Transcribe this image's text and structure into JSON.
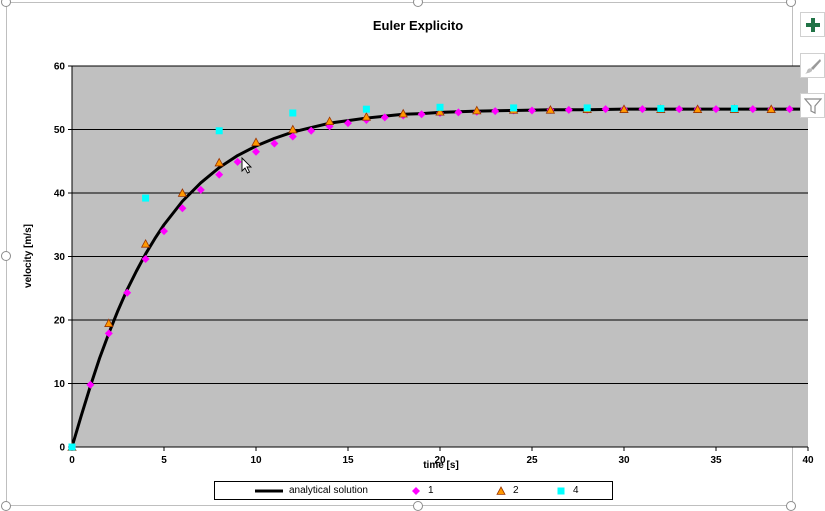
{
  "colors": {
    "plot_bg": "#c0c0c0",
    "grid": "#000000",
    "series_1": "#ff00ff",
    "series_2": "#ff9900",
    "series_2_edge": "#993300",
    "series_4": "#00ffff",
    "analytical": "#000000",
    "accent_plus": "#217346"
  },
  "toolbar": {
    "chart_elements_icon": "plus-icon",
    "chart_styles_icon": "brush-icon",
    "chart_filters_icon": "funnel-icon"
  },
  "chart_data": {
    "type": "scatter",
    "title": "Euler Explicito",
    "xlabel": "time [s]",
    "ylabel": "velocity [m/s]",
    "xlim": [
      0,
      40
    ],
    "ylim": [
      0,
      60
    ],
    "xticks": [
      "0",
      "5",
      "10",
      "15",
      "20",
      "25",
      "30",
      "35",
      "40"
    ],
    "yticks": [
      "0",
      "10",
      "20",
      "30",
      "40",
      "50",
      "60"
    ],
    "grid": "horizontal",
    "legend_position": "bottom",
    "series": [
      {
        "name": "analytical solution",
        "kind": "line",
        "color": "#000000",
        "x": [
          0,
          0.5,
          1,
          1.5,
          2,
          2.5,
          3,
          3.5,
          4,
          4.5,
          5,
          6,
          7,
          8,
          9,
          10,
          11,
          12,
          13,
          14,
          15,
          16,
          17,
          18,
          19,
          20,
          22,
          24,
          26,
          28,
          30,
          32,
          34,
          36,
          38,
          40
        ],
        "y": [
          0,
          4.9,
          9.6,
          14.0,
          17.9,
          21.5,
          24.8,
          27.7,
          30.4,
          32.8,
          35.0,
          38.7,
          41.6,
          44.0,
          45.9,
          47.4,
          48.6,
          49.6,
          50.3,
          51.0,
          51.4,
          51.8,
          52.1,
          52.4,
          52.5,
          52.7,
          52.9,
          53.0,
          53.1,
          53.1,
          53.2,
          53.2,
          53.2,
          53.2,
          53.2,
          53.2
        ]
      },
      {
        "name": "1",
        "kind": "marker",
        "marker": "diamond",
        "color": "#ff00ff",
        "x": [
          0,
          1,
          2,
          3,
          4,
          5,
          6,
          7,
          8,
          9,
          10,
          11,
          12,
          13,
          14,
          15,
          16,
          17,
          18,
          19,
          20,
          21,
          22,
          23,
          24,
          25,
          26,
          27,
          28,
          29,
          30,
          31,
          32,
          33,
          34,
          35,
          36,
          37,
          38,
          39
        ],
        "y": [
          0,
          9.8,
          17.9,
          24.3,
          29.6,
          34.0,
          37.6,
          40.5,
          42.9,
          44.9,
          46.5,
          47.8,
          48.9,
          49.8,
          50.5,
          51.0,
          51.5,
          51.9,
          52.2,
          52.4,
          52.6,
          52.7,
          52.8,
          52.9,
          53.0,
          53.0,
          53.1,
          53.1,
          53.1,
          53.2,
          53.2,
          53.2,
          53.2,
          53.2,
          53.2,
          53.2,
          53.2,
          53.2,
          53.2,
          53.2
        ]
      },
      {
        "name": "2",
        "kind": "marker",
        "marker": "triangle",
        "color": "#ff9900",
        "x": [
          0,
          2,
          4,
          6,
          8,
          10,
          12,
          14,
          16,
          18,
          20,
          22,
          24,
          26,
          28,
          30,
          32,
          34,
          36,
          38
        ],
        "y": [
          0,
          19.5,
          32.0,
          40.0,
          44.8,
          48.0,
          50.0,
          51.3,
          52.0,
          52.5,
          52.8,
          53.0,
          53.1,
          53.1,
          53.2,
          53.2,
          53.2,
          53.2,
          53.2,
          53.2
        ]
      },
      {
        "name": "4",
        "kind": "marker",
        "marker": "square",
        "color": "#00ffff",
        "x": [
          0,
          4,
          8,
          12,
          16,
          20,
          24,
          28,
          32,
          36
        ],
        "y": [
          0,
          39.2,
          49.8,
          52.6,
          53.2,
          53.5,
          53.4,
          53.4,
          53.3,
          53.3
        ]
      }
    ]
  }
}
